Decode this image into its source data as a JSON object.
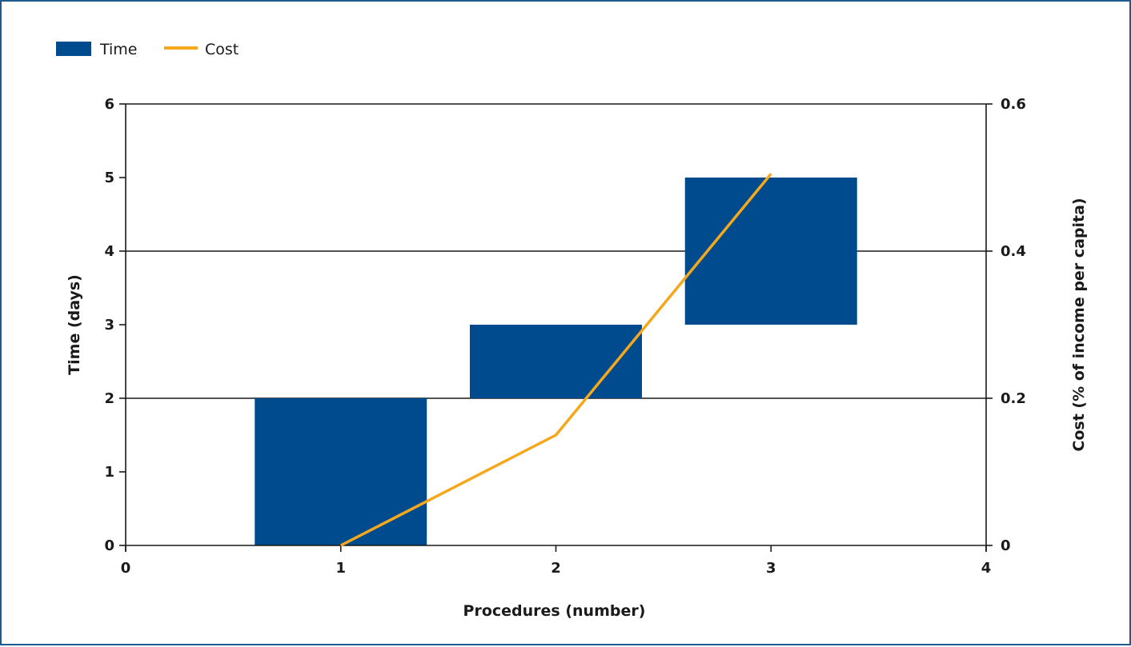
{
  "chart_data": {
    "type": "bar",
    "x": [
      1,
      2,
      3
    ],
    "xlabel": "Procedures (number)",
    "ylabel": "Time (days)",
    "y2label": "Cost (% of income per capita)",
    "xlim": [
      0,
      4
    ],
    "ylim": [
      0,
      6
    ],
    "y2lim": [
      0,
      0.6
    ],
    "xticks": [
      "0",
      "1",
      "2",
      "3",
      "4"
    ],
    "yticks": [
      "0",
      "1",
      "2",
      "3",
      "4",
      "5",
      "6"
    ],
    "y2ticks": [
      "0",
      "0.2",
      "0.4",
      "0.6"
    ],
    "grid": true,
    "legend_position": "top-left",
    "legend": [
      {
        "label": "Time",
        "marker": "bar"
      },
      {
        "label": "Cost",
        "marker": "line"
      }
    ],
    "series": [
      {
        "name": "Time",
        "type": "floating-bar",
        "axis": "left",
        "color": "#004b8d",
        "bars": [
          {
            "x": 1,
            "start": 0,
            "end": 2
          },
          {
            "x": 2,
            "start": 2,
            "end": 3
          },
          {
            "x": 3,
            "start": 3,
            "end": 5
          }
        ]
      },
      {
        "name": "Cost",
        "type": "line",
        "axis": "right",
        "color": "#f5a81c",
        "points": [
          {
            "x": 1,
            "y": 0
          },
          {
            "x": 2,
            "y": 0.15
          },
          {
            "x": 3,
            "y": 0.505
          }
        ]
      }
    ]
  }
}
